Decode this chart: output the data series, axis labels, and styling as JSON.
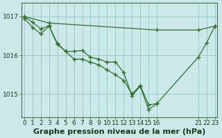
{
  "title": "Graphe pression niveau de la mer (hPa)",
  "background_color": "#cce8e8",
  "grid_color": "#99cccc",
  "line_color": "#2d6e2d",
  "ylim": [
    1014.4,
    1017.35
  ],
  "y_ticks": [
    1015,
    1016,
    1017
  ],
  "xlim": [
    -0.3,
    23.3
  ],
  "series1_x": [
    0,
    3,
    16,
    21,
    23
  ],
  "series1_y": [
    1017.0,
    1016.83,
    1016.65,
    1016.65,
    1016.75
  ],
  "series2_x": [
    0,
    1,
    2,
    3,
    4,
    5,
    6,
    7,
    8,
    9,
    10,
    11,
    12,
    13,
    14,
    15,
    16,
    21,
    22,
    23
  ],
  "series2_y": [
    1016.95,
    1016.72,
    1016.55,
    1016.75,
    1016.28,
    1016.1,
    1016.1,
    1016.12,
    1015.95,
    1015.9,
    1015.82,
    1015.83,
    1015.55,
    1014.95,
    1015.2,
    1014.6,
    1014.75,
    1015.95,
    1016.32,
    1016.75
  ],
  "series3_x": [
    0,
    1,
    2,
    3,
    4,
    5,
    6,
    7,
    8,
    9,
    10,
    11,
    12,
    13,
    14,
    15,
    16
  ],
  "series3_y": [
    1017.0,
    1016.85,
    1016.68,
    1016.76,
    1016.3,
    1016.1,
    1015.9,
    1015.9,
    1015.82,
    1015.75,
    1015.62,
    1015.5,
    1015.35,
    1015.0,
    1015.22,
    1014.72,
    1014.75
  ],
  "marker": "+",
  "marker_size": 4,
  "line_width": 0.9,
  "tick_fontsize": 6.5,
  "title_fontsize": 8
}
